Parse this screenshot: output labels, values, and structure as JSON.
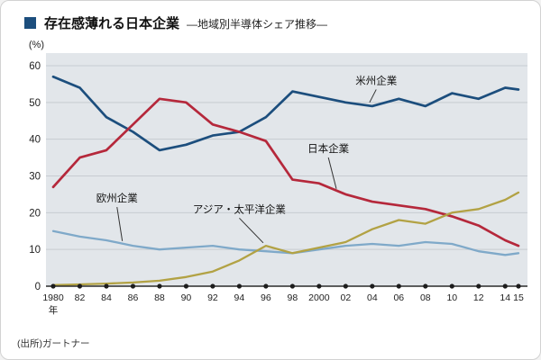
{
  "header": {
    "title": "存在感薄れる日本企業",
    "subtitle": "―地域別半導体シェア推移―",
    "accent_color": "#1c4e7d"
  },
  "footer": {
    "source": "(出所)ガートナー"
  },
  "chart_data": {
    "type": "line",
    "title": "存在感薄れる日本企業 ―地域別半導体シェア推移―",
    "ylabel": "(%)",
    "ylim": [
      0,
      60
    ],
    "yticks": [
      0,
      10,
      20,
      30,
      40,
      50,
      60
    ],
    "x": [
      1980,
      1982,
      1984,
      1986,
      1988,
      1990,
      1992,
      1994,
      1996,
      1998,
      2000,
      2002,
      2004,
      2006,
      2008,
      2010,
      2012,
      2014,
      2015
    ],
    "x_labels": [
      "1980",
      "82",
      "84",
      "86",
      "88",
      "90",
      "92",
      "94",
      "96",
      "98",
      "2000",
      "02",
      "04",
      "06",
      "08",
      "10",
      "12",
      "14",
      "15"
    ],
    "x_unit": "年",
    "grid": true,
    "legend_position": "inline-annotations",
    "plot_bg": "#e2e6ea",
    "grid_color": "#c7ccd1",
    "axis_color": "#2b2b2b",
    "series": [
      {
        "name": "米州企業",
        "color": "#1c4e7d",
        "values": [
          57,
          54,
          46,
          42,
          37,
          38.5,
          41,
          42,
          46,
          53,
          51.5,
          50,
          49,
          51,
          49,
          52.5,
          51,
          54,
          53.5
        ]
      },
      {
        "name": "日本企業",
        "color": "#b5283b",
        "values": [
          27,
          35,
          37,
          44,
          51,
          50,
          44,
          42,
          39.5,
          29,
          28,
          25,
          23,
          22,
          21,
          19,
          16.5,
          12.5,
          11
        ]
      },
      {
        "name": "欧州企業",
        "color": "#7fa9c9",
        "values": [
          15,
          13.5,
          12.5,
          11,
          10,
          10.5,
          11,
          10,
          9.5,
          9,
          10,
          11,
          11.5,
          11,
          12,
          11.5,
          9.5,
          8.5,
          9
        ]
      },
      {
        "name": "アジア・太平洋企業",
        "color": "#b2a244",
        "values": [
          0.3,
          0.5,
          0.7,
          1,
          1.5,
          2.5,
          4,
          7,
          11,
          9,
          10.5,
          12,
          15.5,
          18,
          17,
          20,
          21,
          23.5,
          25.5
        ]
      }
    ],
    "annotations": [
      {
        "text": "米州企業",
        "label_year": 2004.3,
        "label_value": 55,
        "target_year": 2003.8,
        "target_value": 50
      },
      {
        "text": "日本企業",
        "label_year": 2000.7,
        "label_value": 36.5,
        "target_year": 2001.3,
        "target_value": 26.5
      },
      {
        "text": "欧州企業",
        "label_year": 1984.8,
        "label_value": 23,
        "target_year": 1985.2,
        "target_value": 12.3
      },
      {
        "text": "アジア・太平洋企業",
        "label_year": 1994.0,
        "label_value": 20,
        "target_year": 1995.8,
        "target_value": 11.8
      }
    ]
  }
}
